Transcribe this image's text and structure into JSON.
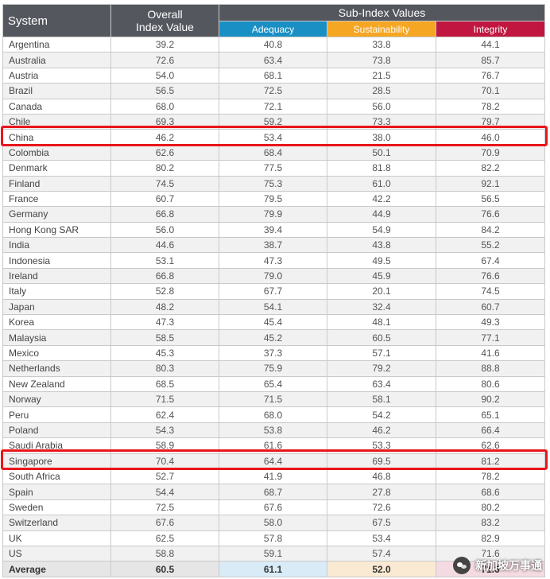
{
  "header": {
    "system": "System",
    "overall_line1": "Overall",
    "overall_line2": "Index Value",
    "sub_index": "Sub-Index Values",
    "adequacy": "Adequacy",
    "sustainability": "Sustainability",
    "integrity": "Integrity"
  },
  "rows": [
    [
      "Argentina",
      "39.2",
      "40.8",
      "33.8",
      "44.1"
    ],
    [
      "Australia",
      "72.6",
      "63.4",
      "73.8",
      "85.7"
    ],
    [
      "Austria",
      "54.0",
      "68.1",
      "21.5",
      "76.7"
    ],
    [
      "Brazil",
      "56.5",
      "72.5",
      "28.5",
      "70.1"
    ],
    [
      "Canada",
      "68.0",
      "72.1",
      "56.0",
      "78.2"
    ],
    [
      "Chile",
      "69.3",
      "59.2",
      "73.3",
      "79.7"
    ],
    [
      "China",
      "46.2",
      "53.4",
      "38.0",
      "46.0"
    ],
    [
      "Colombia",
      "62.6",
      "68.4",
      "50.1",
      "70.9"
    ],
    [
      "Denmark",
      "80.2",
      "77.5",
      "81.8",
      "82.2"
    ],
    [
      "Finland",
      "74.5",
      "75.3",
      "61.0",
      "92.1"
    ],
    [
      "France",
      "60.7",
      "79.5",
      "42.2",
      "56.5"
    ],
    [
      "Germany",
      "66.8",
      "79.9",
      "44.9",
      "76.6"
    ],
    [
      "Hong Kong SAR",
      "56.0",
      "39.4",
      "54.9",
      "84.2"
    ],
    [
      "India",
      "44.6",
      "38.7",
      "43.8",
      "55.2"
    ],
    [
      "Indonesia",
      "53.1",
      "47.3",
      "49.5",
      "67.4"
    ],
    [
      "Ireland",
      "66.8",
      "79.0",
      "45.9",
      "76.6"
    ],
    [
      "Italy",
      "52.8",
      "67.7",
      "20.1",
      "74.5"
    ],
    [
      "Japan",
      "48.2",
      "54.1",
      "32.4",
      "60.7"
    ],
    [
      "Korea",
      "47.3",
      "45.4",
      "48.1",
      "49.3"
    ],
    [
      "Malaysia",
      "58.5",
      "45.2",
      "60.5",
      "77.1"
    ],
    [
      "Mexico",
      "45.3",
      "37.3",
      "57.1",
      "41.6"
    ],
    [
      "Netherlands",
      "80.3",
      "75.9",
      "79.2",
      "88.8"
    ],
    [
      "New Zealand",
      "68.5",
      "65.4",
      "63.4",
      "80.6"
    ],
    [
      "Norway",
      "71.5",
      "71.5",
      "58.1",
      "90.2"
    ],
    [
      "Peru",
      "62.4",
      "68.0",
      "54.2",
      "65.1"
    ],
    [
      "Poland",
      "54.3",
      "53.8",
      "46.2",
      "66.4"
    ],
    [
      "Saudi Arabia",
      "58.9",
      "61.6",
      "53.3",
      "62.6"
    ],
    [
      "Singapore",
      "70.4",
      "64.4",
      "69.5",
      "81.2"
    ],
    [
      "South Africa",
      "52.7",
      "41.9",
      "46.8",
      "78.2"
    ],
    [
      "Spain",
      "54.4",
      "68.7",
      "27.8",
      "68.6"
    ],
    [
      "Sweden",
      "72.5",
      "67.6",
      "72.6",
      "80.2"
    ],
    [
      "Switzerland",
      "67.6",
      "58.0",
      "67.5",
      "83.2"
    ],
    [
      "UK",
      "62.5",
      "57.8",
      "53.4",
      "82.9"
    ],
    [
      "US",
      "58.8",
      "59.1",
      "57.4",
      "71.6"
    ]
  ],
  "average": [
    "Average",
    "60.5",
    "61.1",
    "52.0",
    "71.6"
  ],
  "highlighted_rows": [
    "China",
    "Singapore"
  ],
  "watermark": {
    "text": "新加坡万事通",
    "icon": "wechat-icon"
  },
  "colors": {
    "header_bg": "#54575e",
    "adequacy": "#1a8fc4",
    "sustainability": "#f5a623",
    "integrity": "#c0163f",
    "highlight": "#e8161b"
  }
}
